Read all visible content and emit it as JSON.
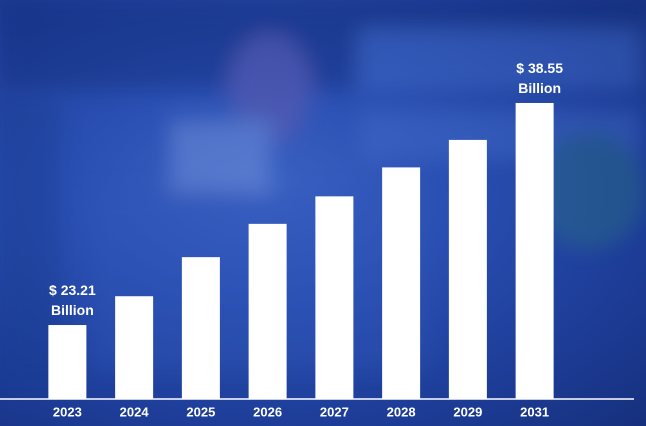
{
  "chart_data": {
    "type": "bar",
    "categories": [
      "2023",
      "2024",
      "2025",
      "2026",
      "2027",
      "2028",
      "2029",
      "2031"
    ],
    "values": [
      23.21,
      25.2,
      27.9,
      30.2,
      32.1,
      34.1,
      36.0,
      38.55
    ],
    "value_labels": [
      "$ 23.21\nBillion",
      null,
      null,
      null,
      null,
      null,
      null,
      "$ 38.55\nBillion"
    ],
    "color": "#ffffff",
    "ylim": [
      18.1,
      40
    ]
  }
}
